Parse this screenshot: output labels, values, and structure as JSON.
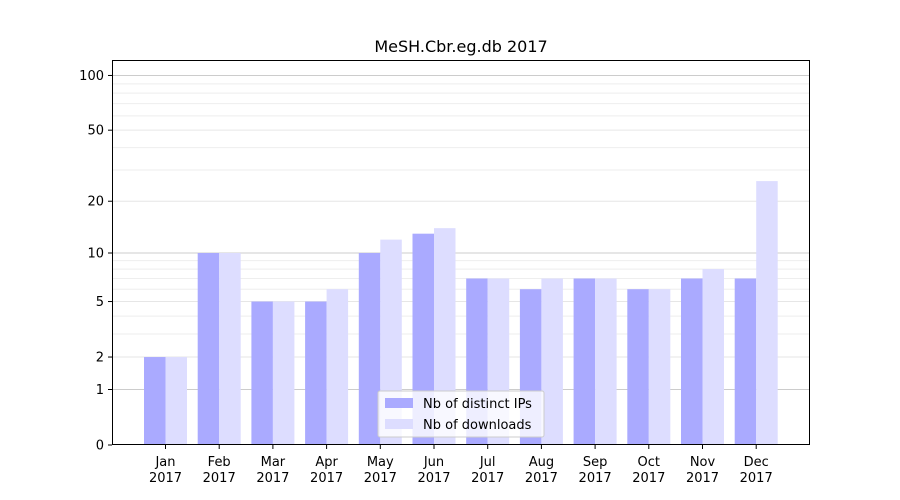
{
  "chart_data": {
    "type": "bar",
    "title": "MeSH.Cbr.eg.db 2017",
    "xlabel": "",
    "ylabel": "",
    "yscale": "log1p",
    "ylim": [
      0,
      120
    ],
    "yticks": [
      0,
      1,
      2,
      5,
      10,
      20,
      50,
      100
    ],
    "grid": "horizontal",
    "legend_position": "lower-center",
    "categories": [
      [
        "Jan",
        "2017"
      ],
      [
        "Feb",
        "2017"
      ],
      [
        "Mar",
        "2017"
      ],
      [
        "Apr",
        "2017"
      ],
      [
        "May",
        "2017"
      ],
      [
        "Jun",
        "2017"
      ],
      [
        "Jul",
        "2017"
      ],
      [
        "Aug",
        "2017"
      ],
      [
        "Sep",
        "2017"
      ],
      [
        "Oct",
        "2017"
      ],
      [
        "Nov",
        "2017"
      ],
      [
        "Dec",
        "2017"
      ]
    ],
    "series": [
      {
        "name": "Nb of distinct IPs",
        "color": "#aaaaff",
        "values": [
          2,
          10,
          5,
          5,
          10,
          13,
          7,
          6,
          7,
          6,
          7,
          7
        ]
      },
      {
        "name": "Nb of downloads",
        "color": "#ddddff",
        "values": [
          2,
          10,
          5,
          6,
          12,
          14,
          7,
          7,
          7,
          6,
          8,
          26
        ]
      }
    ]
  }
}
